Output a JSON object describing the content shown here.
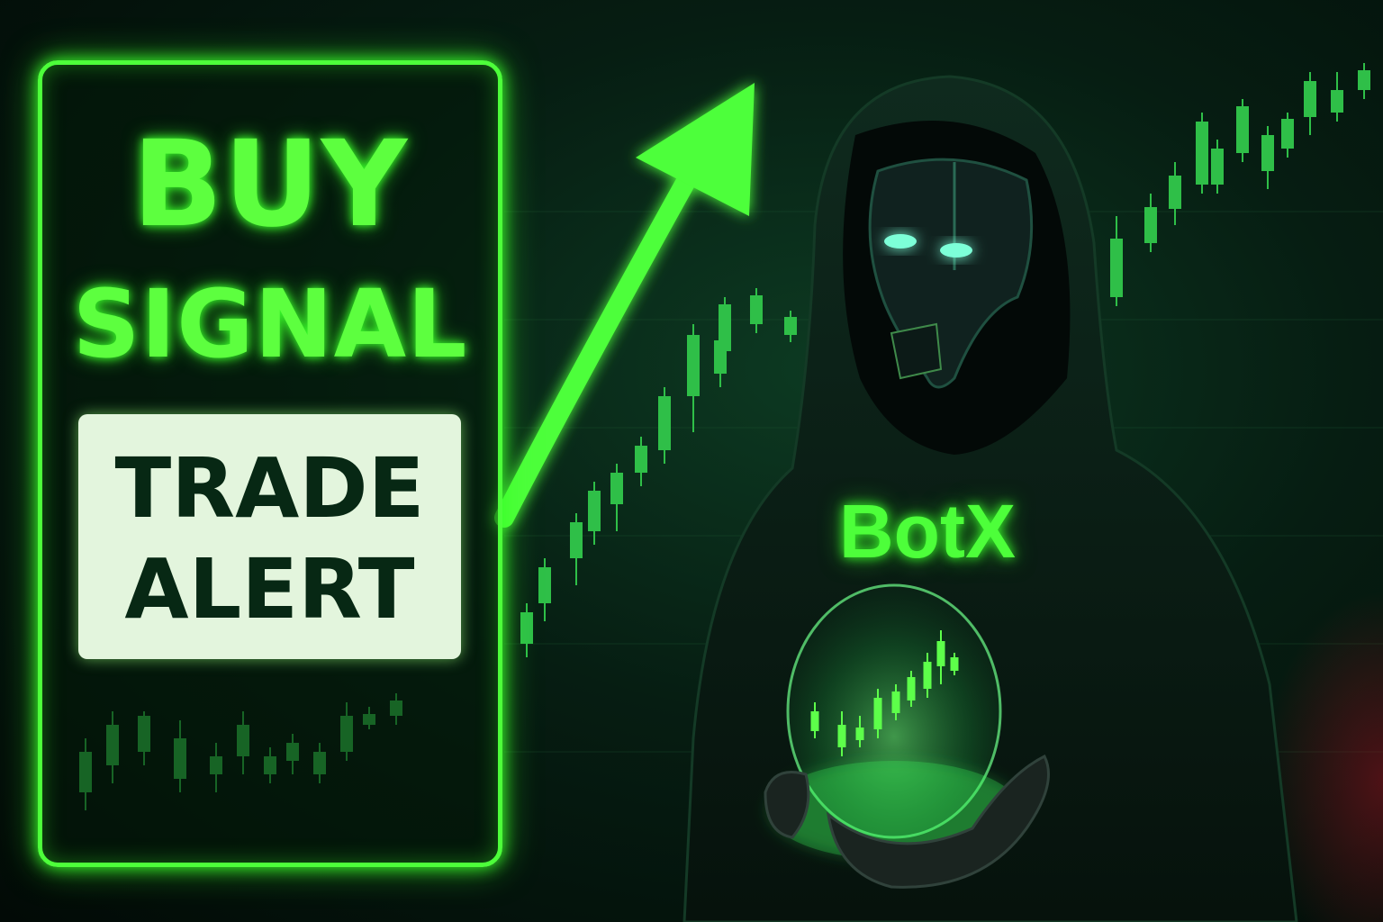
{
  "sign": {
    "line1": "BUY",
    "line2": "SIGNAL",
    "alert_line1": "TRADE",
    "alert_line2": "ALERT"
  },
  "figure": {
    "hoodie_text": "BotX"
  },
  "colors": {
    "neon_green": "#4dff3a",
    "background": "#061d12",
    "alert_box": "#e3f5dd",
    "alert_text": "#072814"
  },
  "icons": [
    "trend-up-arrow",
    "candlestick-chart",
    "crystal-ball",
    "robot-mask"
  ]
}
